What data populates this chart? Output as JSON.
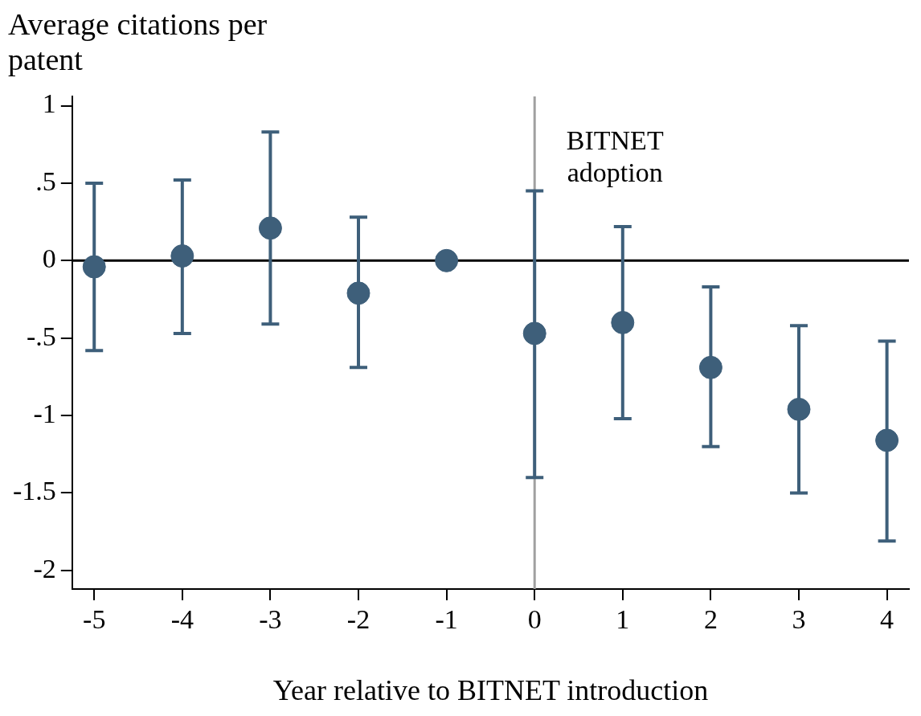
{
  "chart_data": {
    "type": "scatter",
    "xlabel": "Year relative to BITNET introduction",
    "ylabel": "Average citations per patent",
    "x": [
      -5,
      -4,
      -3,
      -2,
      -1,
      0,
      1,
      2,
      3,
      4
    ],
    "series": [
      {
        "color": "#3e5f7a",
        "values": [
          -0.04,
          0.03,
          0.21,
          -0.21,
          0,
          -0.47,
          -0.4,
          -0.69,
          -0.96,
          -1.16
        ],
        "errors": [
          [
            -0.58,
            0.5
          ],
          [
            -0.47,
            0.52
          ],
          [
            -0.41,
            0.83
          ],
          [
            -0.69,
            0.28
          ],
          null,
          [
            -1.4,
            0.45
          ],
          [
            -1.02,
            0.22
          ],
          [
            -1.2,
            -0.17
          ],
          [
            -1.5,
            -0.42
          ],
          [
            -1.81,
            -0.52
          ]
        ]
      }
    ],
    "xlim": [
      -5.25,
      4.25
    ],
    "xticks": [
      -5,
      -4,
      -3,
      -2,
      -1,
      0,
      1,
      2,
      3,
      4
    ],
    "ylim": [
      -2.12,
      1.06
    ],
    "yticks": [
      {
        "value": -2,
        "label": "-2"
      },
      {
        "value": -1.5,
        "label": "-1.5"
      },
      {
        "value": -1,
        "label": "-1"
      },
      {
        "value": -0.5,
        "label": "-.5"
      },
      {
        "value": 0,
        "label": "0"
      },
      {
        "value": 0.5,
        "label": ".5"
      },
      {
        "value": 1,
        "label": "1"
      }
    ],
    "ref_lines": [
      {
        "axis": "y",
        "value": 0,
        "color": "#000000"
      },
      {
        "axis": "x",
        "value": 0,
        "color": "#a0a0a0",
        "label": "BITNET adoption"
      }
    ],
    "grid": false,
    "legend": false,
    "marker": "circle"
  }
}
